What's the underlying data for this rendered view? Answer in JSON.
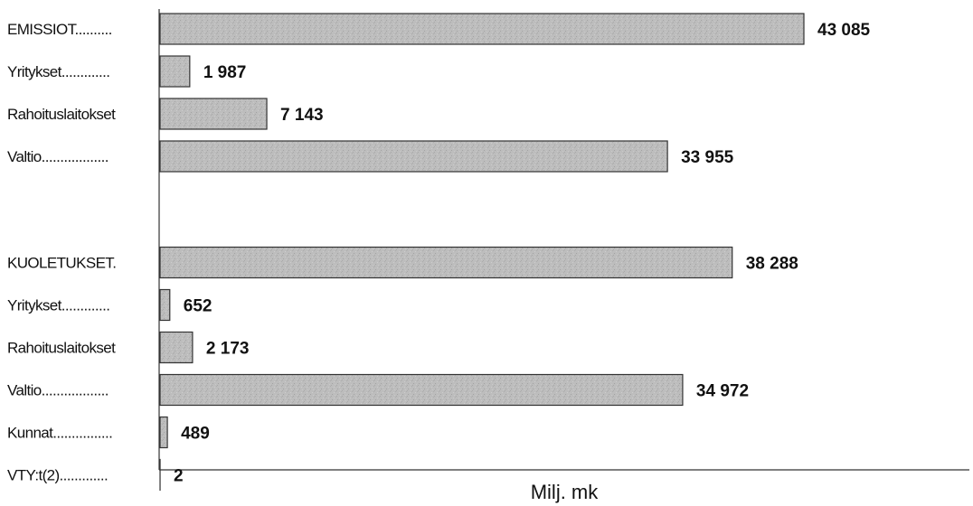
{
  "chart_data": {
    "type": "bar",
    "orientation": "horizontal",
    "title": "",
    "xlabel": "Milj. mk",
    "ylabel": "",
    "xlim": [
      0,
      43085
    ],
    "grid": false,
    "legend": "none",
    "bar_color": "#b8b8b8",
    "groups": [
      {
        "items": [
          {
            "label": "EMISSIOT..........",
            "value": 43085,
            "value_label": "43 085"
          },
          {
            "label": "Yritykset.............",
            "value": 1987,
            "value_label": "1 987"
          },
          {
            "label": "Rahoituslaitokset",
            "value": 7143,
            "value_label": "7 143"
          },
          {
            "label": "Valtio..................",
            "value": 33955,
            "value_label": "33 955"
          }
        ]
      },
      {
        "items": [
          {
            "label": "KUOLETUKSET.",
            "value": 38288,
            "value_label": "38 288"
          },
          {
            "label": "Yritykset.............",
            "value": 652,
            "value_label": "652"
          },
          {
            "label": "Rahoituslaitokset",
            "value": 2173,
            "value_label": "2 173"
          },
          {
            "label": "Valtio..................",
            "value": 34972,
            "value_label": "34 972"
          },
          {
            "label": "Kunnat................",
            "value": 489,
            "value_label": "489"
          },
          {
            "label": "VTY:t(2).............",
            "value": 2,
            "value_label": "2"
          }
        ]
      }
    ]
  }
}
